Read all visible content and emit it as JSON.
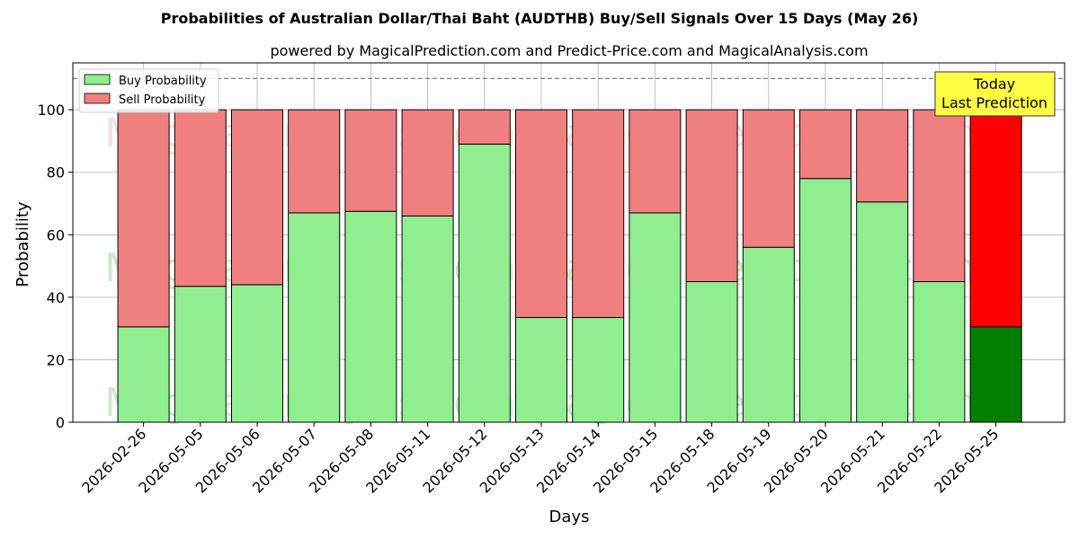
{
  "title": "Probabilities of Australian Dollar/Thai Baht (AUDTHB) Buy/Sell Signals Over 15 Days (May 26)",
  "subtitle": "powered by MagicalPrediction.com and Predict-Price.com and MagicalAnalysis.com",
  "watermarks": [
    "MagicalAnalysis.com",
    "MagicalPrediction.com"
  ],
  "annotation": {
    "line1": "Today",
    "line2": "Last Prediction"
  },
  "colors": {
    "buy": "#90ee90",
    "sell": "#f08080",
    "buy_last": "#008000",
    "sell_last": "#ff0000",
    "annotation_bg": "#ffff44",
    "grid": "#b0b0b0",
    "threshold": "#808080"
  },
  "chart_data": {
    "type": "bar",
    "stacked": true,
    "title": "Probabilities of Australian Dollar/Thai Baht (AUDTHB) Buy/Sell Signals Over 15 Days (May 26)",
    "xlabel": "Days",
    "ylabel": "Probability",
    "ylim": [
      0,
      115
    ],
    "yticks": [
      0,
      20,
      40,
      60,
      80,
      100
    ],
    "threshold_line": 110,
    "grid": true,
    "legend_position": "top-left",
    "categories": [
      "2026-02-26",
      "2026-05-05",
      "2026-05-06",
      "2026-05-07",
      "2026-05-08",
      "2026-05-11",
      "2026-05-12",
      "2026-05-13",
      "2026-05-14",
      "2026-05-15",
      "2026-05-18",
      "2026-05-19",
      "2026-05-20",
      "2026-05-21",
      "2026-05-22",
      "2026-05-25"
    ],
    "series": [
      {
        "name": "Buy Probability",
        "values": [
          30.5,
          43.5,
          44,
          67,
          67.5,
          66,
          89,
          33.5,
          33.5,
          67,
          45,
          56,
          78,
          70.5,
          45,
          30.5
        ]
      },
      {
        "name": "Sell Probability",
        "values": [
          69.5,
          56.5,
          56,
          33,
          32.5,
          34,
          11,
          66.5,
          66.5,
          33,
          55,
          44,
          22,
          29.5,
          55,
          69.5
        ]
      }
    ]
  }
}
